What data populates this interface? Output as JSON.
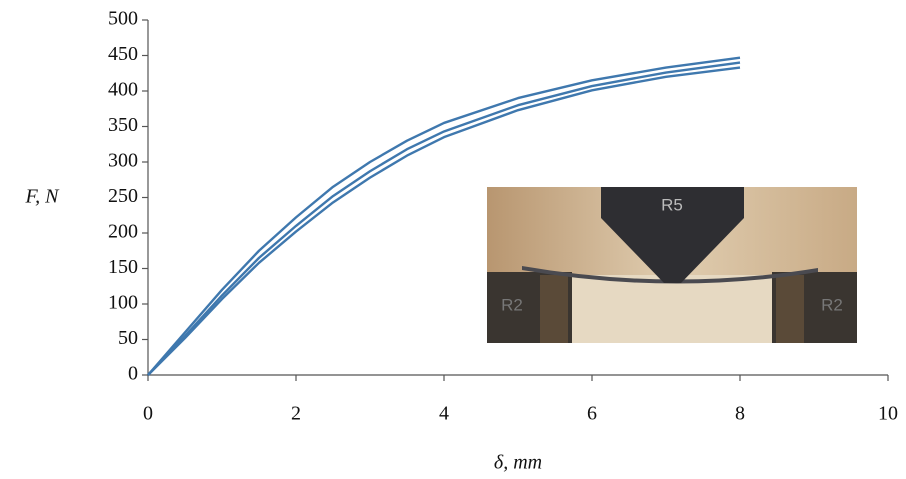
{
  "chart_data": {
    "type": "line",
    "x_label": "δ, mm",
    "y_label": "F, N",
    "x": [
      0,
      0.5,
      1,
      1.5,
      2,
      2.5,
      3,
      3.5,
      4,
      5,
      6,
      7,
      8
    ],
    "series": [
      {
        "color": "#3f78ae",
        "values": [
          0,
          60,
          120,
          175,
          222,
          265,
          300,
          330,
          355,
          390,
          415,
          433,
          447
        ]
      },
      {
        "color": "#3f78ae",
        "values": [
          0,
          55,
          112,
          165,
          210,
          252,
          287,
          318,
          343,
          380,
          407,
          426,
          440
        ]
      },
      {
        "color": "#3f78ae",
        "values": [
          0,
          52,
          107,
          158,
          202,
          243,
          278,
          309,
          335,
          373,
          401,
          420,
          433
        ]
      }
    ],
    "xlim": [
      0,
      10
    ],
    "xticks": [
      0,
      2,
      4,
      6,
      8,
      10
    ],
    "ylim": [
      0,
      500
    ],
    "yticks": [
      0,
      50,
      100,
      150,
      200,
      250,
      300,
      350,
      400,
      450,
      500
    ],
    "grid": false,
    "inset_labels": [
      "R5",
      "R2",
      "R2"
    ]
  }
}
